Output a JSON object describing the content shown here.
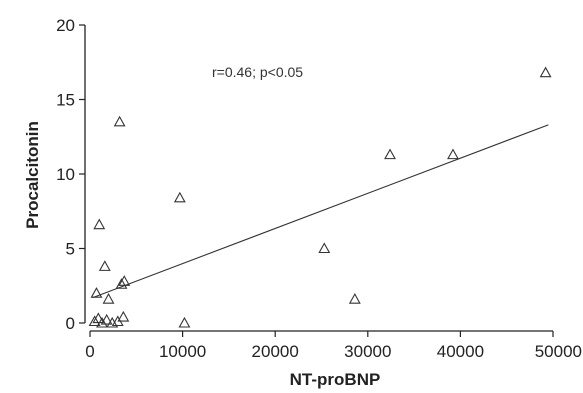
{
  "chart_data": {
    "type": "scatter",
    "xlabel": "NT-proBNP",
    "ylabel": "Procalcitonin",
    "xlim": [
      0,
      50000
    ],
    "ylim": [
      0,
      20
    ],
    "xticks": [
      0,
      10000,
      20000,
      30000,
      40000,
      50000
    ],
    "yticks": [
      0,
      5,
      10,
      15,
      20
    ],
    "xtick_labels": [
      "0",
      "10000",
      "20000",
      "30000",
      "40000",
      "50000"
    ],
    "ytick_labels": [
      "0",
      "5",
      "10",
      "15",
      "20"
    ],
    "annotation": "r=0.46; p<0.05",
    "marker": "triangle-open",
    "grid": false,
    "legend": "none",
    "points": [
      {
        "x": 500,
        "y": 0.1
      },
      {
        "x": 700,
        "y": 2.0
      },
      {
        "x": 900,
        "y": 0.3
      },
      {
        "x": 1000,
        "y": 6.6
      },
      {
        "x": 1300,
        "y": 0.0
      },
      {
        "x": 1600,
        "y": 3.8
      },
      {
        "x": 1800,
        "y": 0.2
      },
      {
        "x": 2000,
        "y": 1.6
      },
      {
        "x": 2400,
        "y": 0.0
      },
      {
        "x": 3000,
        "y": 0.1
      },
      {
        "x": 3200,
        "y": 13.5
      },
      {
        "x": 3400,
        "y": 2.6
      },
      {
        "x": 3600,
        "y": 0.4
      },
      {
        "x": 3700,
        "y": 2.8
      },
      {
        "x": 9700,
        "y": 8.4
      },
      {
        "x": 10200,
        "y": 0.0
      },
      {
        "x": 25300,
        "y": 5.0
      },
      {
        "x": 28600,
        "y": 1.6
      },
      {
        "x": 32400,
        "y": 11.3
      },
      {
        "x": 39200,
        "y": 11.3
      },
      {
        "x": 49200,
        "y": 16.8
      }
    ],
    "trendline": {
      "x": [
        300,
        49500
      ],
      "y": [
        1.7,
        13.3
      ]
    }
  }
}
